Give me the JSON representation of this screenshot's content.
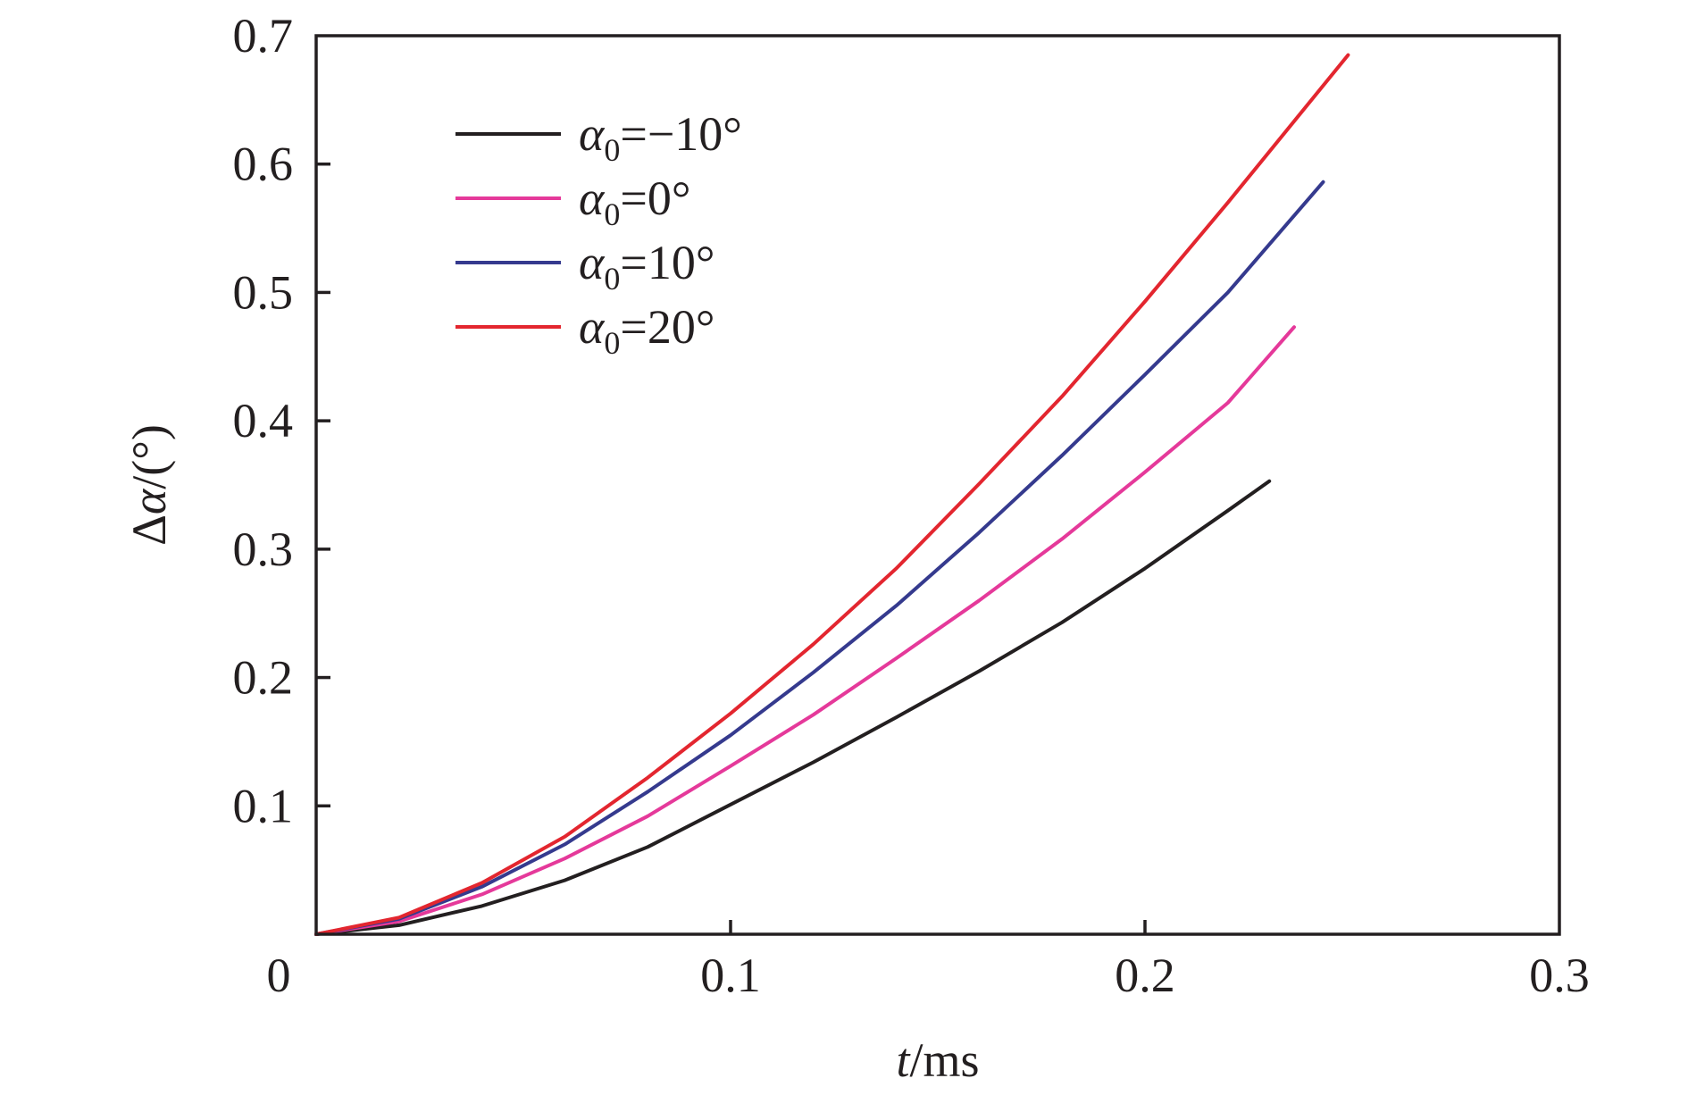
{
  "chart_data": {
    "type": "line",
    "title": "",
    "xlabel": {
      "var": "t",
      "unit": "/ms"
    },
    "ylabel": {
      "prefix": "Δ",
      "var": "α",
      "unit": "/(°)"
    },
    "xlim": [
      0,
      0.3
    ],
    "ylim": [
      0,
      0.7
    ],
    "x_ticks": [
      {
        "value": 0,
        "label": "0"
      },
      {
        "value": 0.1,
        "label": "0.1"
      },
      {
        "value": 0.2,
        "label": "0.2"
      },
      {
        "value": 0.3,
        "label": "0.3"
      }
    ],
    "y_ticks": [
      {
        "value": 0.1,
        "label": "0.1"
      },
      {
        "value": 0.2,
        "label": "0.2"
      },
      {
        "value": 0.3,
        "label": "0.3"
      },
      {
        "value": 0.4,
        "label": "0.4"
      },
      {
        "value": 0.5,
        "label": "0.5"
      },
      {
        "value": 0.6,
        "label": "0.6"
      },
      {
        "value": 0.7,
        "label": "0.7"
      }
    ],
    "grid": false,
    "legend_position": "top-left",
    "series": [
      {
        "name": {
          "var": "α",
          "sub": "0",
          "value": "=−10°"
        },
        "color": "#231f20",
        "x": [
          0,
          0.02,
          0.04,
          0.06,
          0.08,
          0.1,
          0.12,
          0.14,
          0.16,
          0.18,
          0.2,
          0.22,
          0.23
        ],
        "y": [
          0,
          0.007,
          0.022,
          0.042,
          0.068,
          0.101,
          0.134,
          0.169,
          0.205,
          0.243,
          0.285,
          0.33,
          0.353
        ]
      },
      {
        "name": {
          "var": "α",
          "sub": "0",
          "value": "=0°"
        },
        "color": "#e5399a",
        "x": [
          0,
          0.02,
          0.04,
          0.06,
          0.08,
          0.1,
          0.12,
          0.14,
          0.16,
          0.18,
          0.2,
          0.22,
          0.236
        ],
        "y": [
          0,
          0.01,
          0.031,
          0.059,
          0.092,
          0.131,
          0.171,
          0.215,
          0.26,
          0.308,
          0.36,
          0.414,
          0.473
        ]
      },
      {
        "name": {
          "var": "α",
          "sub": "0",
          "value": "=10°"
        },
        "color": "#353a8e",
        "x": [
          0,
          0.02,
          0.04,
          0.06,
          0.08,
          0.1,
          0.12,
          0.14,
          0.16,
          0.18,
          0.2,
          0.22,
          0.243
        ],
        "y": [
          0,
          0.012,
          0.037,
          0.07,
          0.111,
          0.155,
          0.204,
          0.256,
          0.313,
          0.373,
          0.436,
          0.5,
          0.586
        ]
      },
      {
        "name": {
          "var": "α",
          "sub": "0",
          "value": "=20°"
        },
        "color": "#e3262f",
        "x": [
          0,
          0.02,
          0.04,
          0.06,
          0.08,
          0.1,
          0.12,
          0.14,
          0.16,
          0.18,
          0.2,
          0.22,
          0.249
        ],
        "y": [
          0,
          0.013,
          0.04,
          0.076,
          0.122,
          0.172,
          0.226,
          0.285,
          0.351,
          0.419,
          0.493,
          0.57,
          0.685
        ]
      }
    ]
  }
}
